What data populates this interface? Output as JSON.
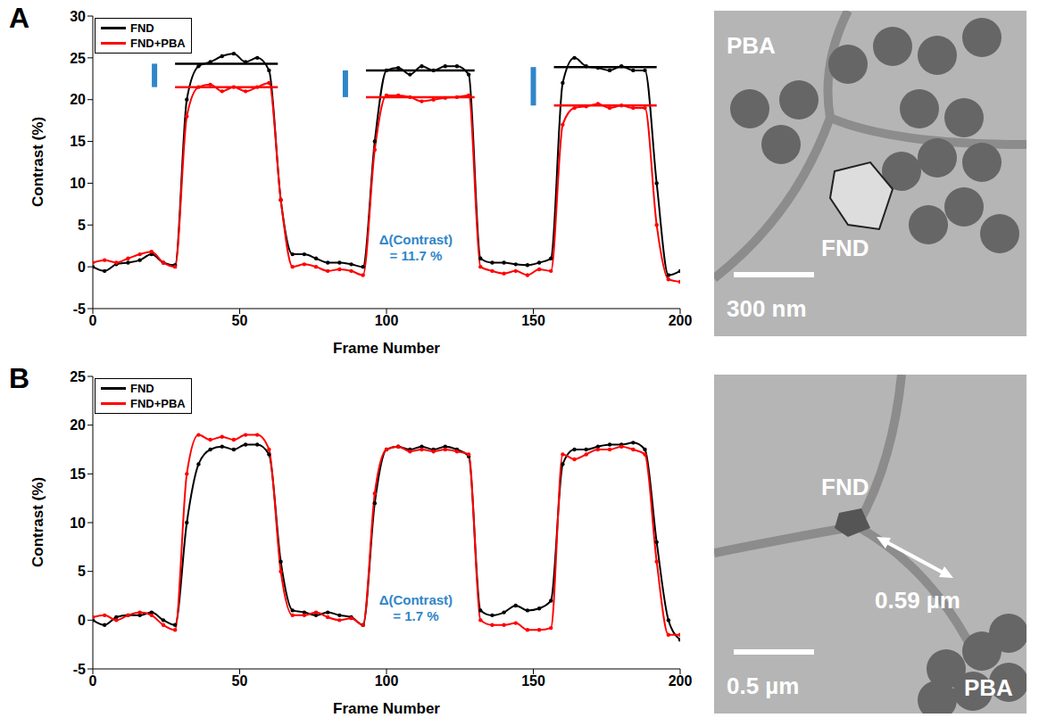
{
  "chart_data": [
    {
      "type": "line",
      "panel": "A",
      "xlabel": "Frame Number",
      "ylabel": "Contrast (%)",
      "xlim": [
        0,
        200
      ],
      "xticks": [
        0,
        50,
        100,
        150,
        200
      ],
      "ylim": [
        -5,
        30
      ],
      "yticks": [
        -5,
        0,
        5,
        10,
        15,
        20,
        25,
        30
      ],
      "legend": "upper left",
      "annotation": [
        "Δ(Contrast)",
        "= 11.7 %"
      ],
      "x": [
        0,
        4,
        8,
        12,
        16,
        20,
        24,
        28,
        32,
        36,
        40,
        44,
        48,
        52,
        56,
        60,
        64,
        68,
        72,
        76,
        80,
        84,
        88,
        92,
        96,
        100,
        104,
        108,
        112,
        116,
        120,
        124,
        128,
        132,
        136,
        140,
        144,
        148,
        152,
        156,
        160,
        164,
        168,
        172,
        176,
        180,
        184,
        188,
        192,
        196,
        200
      ],
      "series": [
        {
          "name": "FND",
          "color": "#000000",
          "marker": "circle",
          "values": [
            0,
            -0.5,
            0.3,
            0.5,
            0.8,
            1.5,
            0.5,
            0.2,
            20,
            24,
            24.5,
            25.2,
            25.5,
            24.5,
            25,
            23.5,
            8,
            1.5,
            1.5,
            1,
            0.5,
            0.5,
            0.3,
            0,
            15,
            23.5,
            23.8,
            23,
            24,
            23.5,
            24,
            24,
            23,
            1,
            0.5,
            0.5,
            0.3,
            0.2,
            0.5,
            1,
            22,
            25,
            24,
            23.8,
            23.5,
            24,
            23.5,
            23.5,
            10,
            -1,
            -0.5
          ],
          "levels": [
            {
              "x": [
                28,
                63
              ],
              "y": 24.3
            },
            {
              "x": [
                93,
                130
              ],
              "y": 23.5
            },
            {
              "x": [
                157,
                192
              ],
              "y": 23.9
            }
          ]
        },
        {
          "name": "FND+PBA",
          "color": "#ff0000",
          "marker": "circle",
          "values": [
            0.5,
            0.8,
            0.5,
            1,
            1.5,
            1.8,
            0.5,
            0,
            18,
            21.5,
            21.8,
            21,
            21.5,
            21,
            21.5,
            22,
            8,
            0,
            0.3,
            0,
            -0.5,
            -0.3,
            -0.5,
            -1,
            14,
            20.5,
            20.5,
            20.3,
            19.8,
            20,
            20.2,
            20.3,
            20.5,
            0,
            -0.5,
            -0.8,
            -0.5,
            -1,
            -0.3,
            -0.5,
            17,
            19,
            19.2,
            19.5,
            19,
            19.3,
            19,
            19,
            5,
            -1.5,
            -1.8
          ],
          "levels": [
            {
              "x": [
                28,
                63
              ],
              "y": 21.5
            },
            {
              "x": [
                93,
                130
              ],
              "y": 20.3
            },
            {
              "x": [
                157,
                192
              ],
              "y": 19.3
            }
          ]
        }
      ]
    },
    {
      "type": "line",
      "panel": "B",
      "xlabel": "Frame Number",
      "ylabel": "Contrast (%)",
      "xlim": [
        0,
        200
      ],
      "xticks": [
        0,
        50,
        100,
        150,
        200
      ],
      "ylim": [
        -5,
        25
      ],
      "yticks": [
        -5,
        0,
        5,
        10,
        15,
        20,
        25
      ],
      "legend": "upper left",
      "annotation": [
        "Δ(Contrast)",
        "= 1.7 %"
      ],
      "x": [
        0,
        4,
        8,
        12,
        16,
        20,
        24,
        28,
        32,
        36,
        40,
        44,
        48,
        52,
        56,
        60,
        64,
        68,
        72,
        76,
        80,
        84,
        88,
        92,
        96,
        100,
        104,
        108,
        112,
        116,
        120,
        124,
        128,
        132,
        136,
        140,
        144,
        148,
        152,
        156,
        160,
        164,
        168,
        172,
        176,
        180,
        184,
        188,
        192,
        196,
        200
      ],
      "series": [
        {
          "name": "FND",
          "color": "#000000",
          "marker": "circle",
          "values": [
            0,
            -0.5,
            0.3,
            0.5,
            0.5,
            0.8,
            0,
            -0.5,
            10,
            16,
            17.5,
            17.8,
            17.5,
            18,
            18,
            17,
            6,
            1,
            0.8,
            0.5,
            0.8,
            0.5,
            0.3,
            -0.5,
            12,
            17.5,
            17.8,
            17.5,
            17.8,
            17.5,
            17.8,
            17.5,
            16.8,
            1,
            0.5,
            0.8,
            1.5,
            1,
            1.2,
            2,
            16,
            17.5,
            17.5,
            17.8,
            18,
            18,
            18.2,
            17.5,
            8,
            0,
            -2
          ]
        },
        {
          "name": "FND+PBA",
          "color": "#ff0000",
          "marker": "circle",
          "values": [
            0.3,
            0.5,
            0,
            0.5,
            0.8,
            0.5,
            -0.5,
            -1,
            15,
            19,
            18.5,
            18.8,
            18.5,
            19,
            19,
            17.5,
            5,
            0.5,
            0.5,
            0.8,
            0.3,
            0,
            0.2,
            -0.5,
            13,
            17.5,
            17.8,
            17.3,
            17.5,
            17.3,
            17.5,
            17.3,
            17,
            0,
            -0.5,
            -0.5,
            -0.3,
            -1,
            -1,
            -0.8,
            17,
            16.5,
            17,
            17.5,
            17.5,
            17.8,
            17.5,
            17,
            6,
            -1.5,
            -1.5
          ]
        }
      ]
    }
  ],
  "images": [
    {
      "panel": "A",
      "labels": [
        "PBA",
        "FND"
      ],
      "scale_bar": "300 nm"
    },
    {
      "panel": "B",
      "labels": [
        "FND",
        "PBA"
      ],
      "scale_bar": "0.5 µm",
      "distance": "0.59 µm"
    }
  ]
}
